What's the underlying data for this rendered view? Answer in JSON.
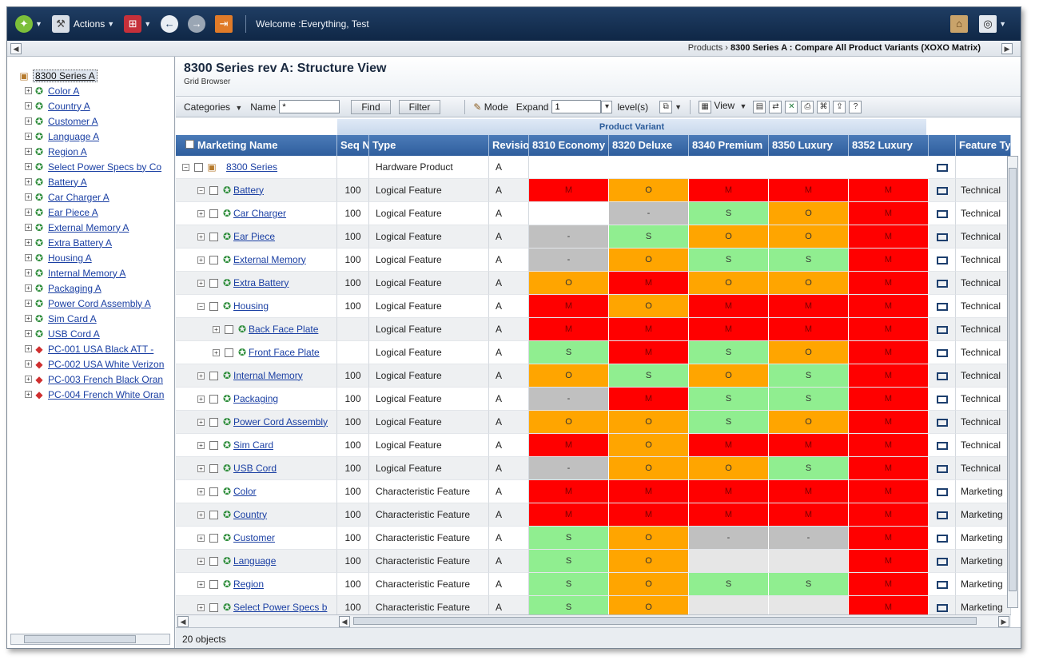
{
  "topbar": {
    "actions_label": "Actions",
    "welcome": "Welcome :Everything, Test"
  },
  "breadcrumb": {
    "parent": "Products",
    "separator": "›",
    "current": "8300 Series A : Compare All Product Variants (XOXO Matrix)"
  },
  "tree": {
    "items": [
      {
        "label": "8300 Series A",
        "icon": "box-icon",
        "root": true
      },
      {
        "label": "Color A",
        "icon": "feature-icon"
      },
      {
        "label": "Country A",
        "icon": "feature-icon"
      },
      {
        "label": "Customer A",
        "icon": "feature-icon"
      },
      {
        "label": "Language A",
        "icon": "feature-icon"
      },
      {
        "label": "Region A",
        "icon": "feature-icon"
      },
      {
        "label": "Select Power Specs by Co",
        "icon": "feature-icon"
      },
      {
        "label": "Battery A",
        "icon": "feature-icon"
      },
      {
        "label": "Car Charger A",
        "icon": "feature-icon"
      },
      {
        "label": "Ear Piece A",
        "icon": "feature-icon"
      },
      {
        "label": "External Memory A",
        "icon": "feature-icon"
      },
      {
        "label": "Extra Battery A",
        "icon": "feature-icon"
      },
      {
        "label": "Housing A",
        "icon": "feature-icon"
      },
      {
        "label": "Internal Memory A",
        "icon": "feature-icon"
      },
      {
        "label": "Packaging A",
        "icon": "feature-icon"
      },
      {
        "label": "Power Cord Assembly A",
        "icon": "feature-icon"
      },
      {
        "label": "Sim Card A",
        "icon": "feature-icon"
      },
      {
        "label": "USB Cord A",
        "icon": "feature-icon"
      },
      {
        "label": "PC-001 USA Black ATT -",
        "icon": "product-config-icon"
      },
      {
        "label": "PC-002 USA White Verizon",
        "icon": "product-config-icon"
      },
      {
        "label": "PC-003 French Black Oran",
        "icon": "product-config-icon"
      },
      {
        "label": "PC-004 French White Oran",
        "icon": "product-config-icon"
      }
    ]
  },
  "header": {
    "title": "8300 Series rev A: Structure View",
    "subtitle": "Grid Browser"
  },
  "gridbar": {
    "categories_label": "Categories",
    "name_label": "Name",
    "name_value": "*",
    "find_label": "Find",
    "filter_label": "Filter",
    "mode_label": "Mode",
    "expand_label": "Expand",
    "expand_value": "1",
    "levels_label": "level(s)",
    "view_label": "View"
  },
  "grid": {
    "band_label": "Product Variant",
    "columns": {
      "name": "Marketing Name",
      "seq": "Seq No",
      "type": "Type",
      "rev": "Revision",
      "feature": "Feature Type"
    },
    "variants": [
      "8310 Economy",
      "8320 Deluxe",
      "8340 Premium",
      "8350 Luxury",
      "8352 Luxury"
    ],
    "rows": [
      {
        "name": "8300 Series",
        "seq": "",
        "type": "Hardware Product",
        "rev": "A",
        "cells": [
          "",
          "",
          "",
          "",
          ""
        ],
        "feature": "",
        "level": 0,
        "expander": "−",
        "icon": "box"
      },
      {
        "name": "Battery",
        "seq": "100",
        "type": "Logical Feature",
        "rev": "A",
        "cells": [
          "M",
          "O",
          "M",
          "M",
          "M"
        ],
        "feature": "Technical",
        "level": 1,
        "expander": "−",
        "icon": "feat"
      },
      {
        "name": "Car Charger",
        "seq": "100",
        "type": "Logical Feature",
        "rev": "A",
        "cells": [
          "",
          "-",
          "S",
          "O",
          "M"
        ],
        "feature": "Technical",
        "level": 1,
        "expander": "+",
        "icon": "feat"
      },
      {
        "name": "Ear Piece",
        "seq": "100",
        "type": "Logical Feature",
        "rev": "A",
        "cells": [
          "-",
          "S",
          "O",
          "O",
          "M"
        ],
        "feature": "Technical",
        "level": 1,
        "expander": "+",
        "icon": "feat"
      },
      {
        "name": "External Memory",
        "seq": "100",
        "type": "Logical Feature",
        "rev": "A",
        "cells": [
          "-",
          "O",
          "S",
          "S",
          "M"
        ],
        "feature": "Technical",
        "level": 1,
        "expander": "+",
        "icon": "feat"
      },
      {
        "name": "Extra Battery",
        "seq": "100",
        "type": "Logical Feature",
        "rev": "A",
        "cells": [
          "O",
          "M",
          "O",
          "O",
          "M"
        ],
        "feature": "Technical",
        "level": 1,
        "expander": "+",
        "icon": "feat"
      },
      {
        "name": "Housing",
        "seq": "100",
        "type": "Logical Feature",
        "rev": "A",
        "cells": [
          "M",
          "O",
          "M",
          "M",
          "M"
        ],
        "feature": "Technical",
        "level": 1,
        "expander": "−",
        "icon": "feat"
      },
      {
        "name": "Back Face Plate",
        "seq": "",
        "type": "Logical Feature",
        "rev": "A",
        "cells": [
          "M",
          "M",
          "M",
          "M",
          "M"
        ],
        "feature": "Technical",
        "level": 2,
        "expander": "+",
        "icon": "feat"
      },
      {
        "name": "Front Face Plate",
        "seq": "",
        "type": "Logical Feature",
        "rev": "A",
        "cells": [
          "S",
          "M",
          "S",
          "O",
          "M"
        ],
        "feature": "Technical",
        "level": 2,
        "expander": "+",
        "icon": "feat"
      },
      {
        "name": "Internal Memory",
        "seq": "100",
        "type": "Logical Feature",
        "rev": "A",
        "cells": [
          "O",
          "S",
          "O",
          "S",
          "M"
        ],
        "feature": "Technical",
        "level": 1,
        "expander": "+",
        "icon": "feat"
      },
      {
        "name": "Packaging",
        "seq": "100",
        "type": "Logical Feature",
        "rev": "A",
        "cells": [
          "-",
          "M",
          "S",
          "S",
          "M"
        ],
        "feature": "Technical",
        "level": 1,
        "expander": "+",
        "icon": "feat"
      },
      {
        "name": "Power Cord Assembly",
        "seq": "100",
        "type": "Logical Feature",
        "rev": "A",
        "cells": [
          "O",
          "O",
          "S",
          "O",
          "M"
        ],
        "feature": "Technical",
        "level": 1,
        "expander": "+",
        "icon": "feat"
      },
      {
        "name": "Sim Card",
        "seq": "100",
        "type": "Logical Feature",
        "rev": "A",
        "cells": [
          "M",
          "O",
          "M",
          "M",
          "M"
        ],
        "feature": "Technical",
        "level": 1,
        "expander": "+",
        "icon": "feat"
      },
      {
        "name": "USB Cord",
        "seq": "100",
        "type": "Logical Feature",
        "rev": "A",
        "cells": [
          "-",
          "O",
          "O",
          "S",
          "M"
        ],
        "feature": "Technical",
        "level": 1,
        "expander": "+",
        "icon": "feat"
      },
      {
        "name": "Color",
        "seq": "100",
        "type": "Characteristic Feature",
        "rev": "A",
        "cells": [
          "M",
          "M",
          "M",
          "M",
          "M"
        ],
        "feature": "Marketing",
        "level": 1,
        "expander": "+",
        "icon": "feat"
      },
      {
        "name": "Country",
        "seq": "100",
        "type": "Characteristic Feature",
        "rev": "A",
        "cells": [
          "M",
          "M",
          "M",
          "M",
          "M"
        ],
        "feature": "Marketing",
        "level": 1,
        "expander": "+",
        "icon": "feat"
      },
      {
        "name": "Customer",
        "seq": "100",
        "type": "Characteristic Feature",
        "rev": "A",
        "cells": [
          "S",
          "O",
          "-",
          "-",
          "M"
        ],
        "feature": "Marketing",
        "level": 1,
        "expander": "+",
        "icon": "feat"
      },
      {
        "name": "Language",
        "seq": "100",
        "type": "Characteristic Feature",
        "rev": "A",
        "cells": [
          "S",
          "O",
          "",
          "",
          "M"
        ],
        "feature": "Marketing",
        "level": 1,
        "expander": "+",
        "icon": "feat"
      },
      {
        "name": "Region",
        "seq": "100",
        "type": "Characteristic Feature",
        "rev": "A",
        "cells": [
          "S",
          "O",
          "S",
          "S",
          "M"
        ],
        "feature": "Marketing",
        "level": 1,
        "expander": "+",
        "icon": "feat"
      },
      {
        "name": "Select Power Specs b",
        "seq": "100",
        "type": "Characteristic Feature",
        "rev": "A",
        "cells": [
          "S",
          "O",
          "",
          "",
          "M"
        ],
        "feature": "Marketing",
        "level": 1,
        "expander": "+",
        "icon": "feat"
      }
    ]
  },
  "status": {
    "count": "20 objects"
  },
  "colors": {
    "M": "#ff0000",
    "O": "#ffa500",
    "S": "#90ee90",
    "-": "#c0c0c0",
    "empty_rowcell": "#e6e6e6",
    "header_bg": "#3c6aa8",
    "topbar_bg": "#1a3457"
  }
}
